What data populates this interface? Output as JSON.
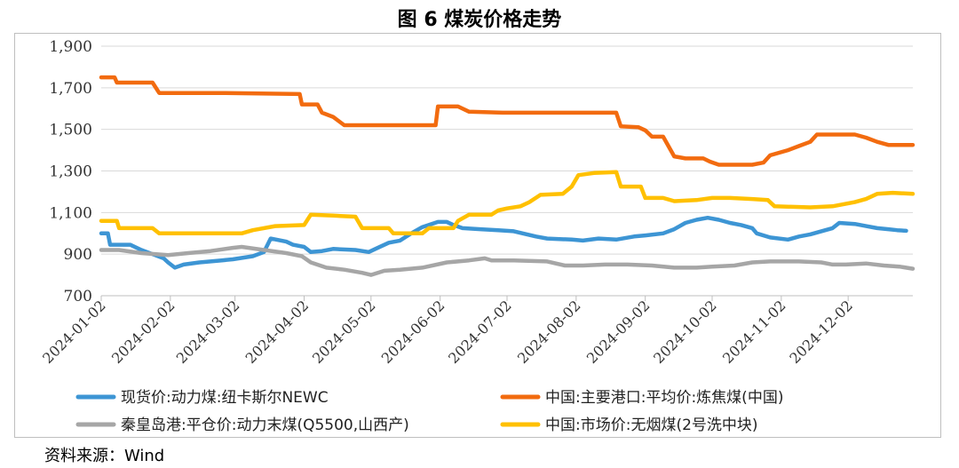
{
  "figure_title": "图 6    煤炭价格走势",
  "source": "资料来源：Wind",
  "colors": {
    "newc": "#3d95d4",
    "coking": "#f26b0f",
    "qinhuangdao": "#a6a6a6",
    "anthracite": "#ffc000",
    "grid": "#d9d9d9",
    "axis": "#bfbfbf"
  },
  "chart_data": {
    "type": "line",
    "title": "",
    "xlabel": "",
    "ylabel": "",
    "ylim": [
      700,
      1900
    ],
    "y_ticks": [
      700,
      900,
      1100,
      1300,
      1500,
      1700,
      1900
    ],
    "y_tick_labels": [
      "700",
      "900",
      "1,100",
      "1,300",
      "1,500",
      "1,700",
      "1,900"
    ],
    "x_range": [
      "2024-01-02",
      "2024-12-31"
    ],
    "x_tick_labels": [
      "2024-01-02",
      "2024-02-02",
      "2024-03-02",
      "2024-04-02",
      "2024-05-02",
      "2024-06-02",
      "2024-07-02",
      "2024-08-02",
      "2024-09-02",
      "2024-10-02",
      "2024-11-02",
      "2024-12-02"
    ],
    "grid": "horizontal",
    "legend_position": "bottom",
    "series": [
      {
        "name": "现货价:动力煤:纽卡斯尔NEWC",
        "color_key": "newc",
        "points": [
          [
            "2024-01-02",
            1000
          ],
          [
            "2024-01-05",
            1000
          ],
          [
            "2024-01-06",
            945
          ],
          [
            "2024-01-15",
            945
          ],
          [
            "2024-01-20",
            920
          ],
          [
            "2024-01-25",
            900
          ],
          [
            "2024-01-30",
            880
          ],
          [
            "2024-02-01",
            860
          ],
          [
            "2024-02-04",
            835
          ],
          [
            "2024-02-08",
            850
          ],
          [
            "2024-02-15",
            860
          ],
          [
            "2024-02-25",
            870
          ],
          [
            "2024-03-01",
            875
          ],
          [
            "2024-03-10",
            890
          ],
          [
            "2024-03-15",
            910
          ],
          [
            "2024-03-18",
            975
          ],
          [
            "2024-03-25",
            960
          ],
          [
            "2024-03-28",
            945
          ],
          [
            "2024-04-02",
            935
          ],
          [
            "2024-04-05",
            910
          ],
          [
            "2024-04-10",
            915
          ],
          [
            "2024-04-15",
            925
          ],
          [
            "2024-04-25",
            920
          ],
          [
            "2024-05-01",
            910
          ],
          [
            "2024-05-05",
            930
          ],
          [
            "2024-05-10",
            955
          ],
          [
            "2024-05-15",
            965
          ],
          [
            "2024-05-20",
            1000
          ],
          [
            "2024-05-25",
            1030
          ],
          [
            "2024-06-01",
            1055
          ],
          [
            "2024-06-05",
            1055
          ],
          [
            "2024-06-08",
            1040
          ],
          [
            "2024-06-12",
            1025
          ],
          [
            "2024-06-20",
            1020
          ],
          [
            "2024-06-28",
            1015
          ],
          [
            "2024-07-05",
            1010
          ],
          [
            "2024-07-15",
            985
          ],
          [
            "2024-07-20",
            975
          ],
          [
            "2024-07-31",
            970
          ],
          [
            "2024-08-05",
            965
          ],
          [
            "2024-08-12",
            975
          ],
          [
            "2024-08-20",
            970
          ],
          [
            "2024-08-28",
            985
          ],
          [
            "2024-09-02",
            990
          ],
          [
            "2024-09-10",
            1000
          ],
          [
            "2024-09-15",
            1020
          ],
          [
            "2024-09-20",
            1050
          ],
          [
            "2024-09-25",
            1065
          ],
          [
            "2024-09-30",
            1075
          ],
          [
            "2024-10-05",
            1065
          ],
          [
            "2024-10-10",
            1050
          ],
          [
            "2024-10-15",
            1040
          ],
          [
            "2024-10-20",
            1025
          ],
          [
            "2024-10-22",
            1000
          ],
          [
            "2024-10-28",
            980
          ],
          [
            "2024-11-05",
            970
          ],
          [
            "2024-11-10",
            985
          ],
          [
            "2024-11-15",
            995
          ],
          [
            "2024-11-20",
            1010
          ],
          [
            "2024-11-25",
            1025
          ],
          [
            "2024-11-28",
            1050
          ],
          [
            "2024-12-05",
            1045
          ],
          [
            "2024-12-10",
            1035
          ],
          [
            "2024-12-15",
            1025
          ],
          [
            "2024-12-20",
            1020
          ],
          [
            "2024-12-24",
            1015
          ],
          [
            "2024-12-28",
            1012
          ]
        ]
      },
      {
        "name": "中国:主要港口:平均价:炼焦煤(中国)",
        "color_key": "coking",
        "points": [
          [
            "2024-01-02",
            1750
          ],
          [
            "2024-01-08",
            1750
          ],
          [
            "2024-01-09",
            1725
          ],
          [
            "2024-01-25",
            1725
          ],
          [
            "2024-01-28",
            1675
          ],
          [
            "2024-02-25",
            1675
          ],
          [
            "2024-03-31",
            1670
          ],
          [
            "2024-04-01",
            1620
          ],
          [
            "2024-04-08",
            1620
          ],
          [
            "2024-04-10",
            1580
          ],
          [
            "2024-04-15",
            1560
          ],
          [
            "2024-04-20",
            1520
          ],
          [
            "2024-05-31",
            1520
          ],
          [
            "2024-06-01",
            1610
          ],
          [
            "2024-06-10",
            1610
          ],
          [
            "2024-06-15",
            1585
          ],
          [
            "2024-06-30",
            1580
          ],
          [
            "2024-07-31",
            1580
          ],
          [
            "2024-08-20",
            1580
          ],
          [
            "2024-08-22",
            1515
          ],
          [
            "2024-08-30",
            1510
          ],
          [
            "2024-09-02",
            1495
          ],
          [
            "2024-09-05",
            1465
          ],
          [
            "2024-09-10",
            1465
          ],
          [
            "2024-09-15",
            1370
          ],
          [
            "2024-09-20",
            1360
          ],
          [
            "2024-09-28",
            1360
          ],
          [
            "2024-10-01",
            1345
          ],
          [
            "2024-10-05",
            1330
          ],
          [
            "2024-10-20",
            1330
          ],
          [
            "2024-10-25",
            1340
          ],
          [
            "2024-10-28",
            1375
          ],
          [
            "2024-11-05",
            1400
          ],
          [
            "2024-11-10",
            1420
          ],
          [
            "2024-11-15",
            1440
          ],
          [
            "2024-11-18",
            1475
          ],
          [
            "2024-11-25",
            1475
          ],
          [
            "2024-12-05",
            1475
          ],
          [
            "2024-12-10",
            1460
          ],
          [
            "2024-12-15",
            1440
          ],
          [
            "2024-12-20",
            1425
          ],
          [
            "2024-12-31",
            1425
          ]
        ]
      },
      {
        "name": "秦皇岛港:平仓价:动力末煤(Q5500,山西产)",
        "color_key": "qinhuangdao",
        "points": [
          [
            "2024-01-02",
            920
          ],
          [
            "2024-01-10",
            920
          ],
          [
            "2024-01-20",
            905
          ],
          [
            "2024-02-01",
            895
          ],
          [
            "2024-02-10",
            905
          ],
          [
            "2024-02-20",
            915
          ],
          [
            "2024-03-01",
            930
          ],
          [
            "2024-03-05",
            935
          ],
          [
            "2024-03-15",
            920
          ],
          [
            "2024-03-25",
            905
          ],
          [
            "2024-04-01",
            890
          ],
          [
            "2024-04-05",
            860
          ],
          [
            "2024-04-12",
            835
          ],
          [
            "2024-04-20",
            825
          ],
          [
            "2024-04-28",
            810
          ],
          [
            "2024-05-02",
            800
          ],
          [
            "2024-05-08",
            820
          ],
          [
            "2024-05-15",
            825
          ],
          [
            "2024-05-25",
            835
          ],
          [
            "2024-06-05",
            860
          ],
          [
            "2024-06-15",
            870
          ],
          [
            "2024-06-22",
            880
          ],
          [
            "2024-06-25",
            870
          ],
          [
            "2024-07-05",
            870
          ],
          [
            "2024-07-20",
            865
          ],
          [
            "2024-07-28",
            845
          ],
          [
            "2024-08-05",
            845
          ],
          [
            "2024-08-15",
            850
          ],
          [
            "2024-08-25",
            850
          ],
          [
            "2024-09-05",
            845
          ],
          [
            "2024-09-15",
            835
          ],
          [
            "2024-09-25",
            835
          ],
          [
            "2024-10-02",
            840
          ],
          [
            "2024-10-12",
            845
          ],
          [
            "2024-10-20",
            860
          ],
          [
            "2024-10-28",
            865
          ],
          [
            "2024-11-10",
            865
          ],
          [
            "2024-11-20",
            860
          ],
          [
            "2024-11-25",
            850
          ],
          [
            "2024-12-01",
            850
          ],
          [
            "2024-12-10",
            855
          ],
          [
            "2024-12-18",
            845
          ],
          [
            "2024-12-25",
            840
          ],
          [
            "2024-12-31",
            830
          ]
        ]
      },
      {
        "name": "中国:市场价:无烟煤(2号洗中块)",
        "color_key": "anthracite",
        "points": [
          [
            "2024-01-02",
            1060
          ],
          [
            "2024-01-09",
            1060
          ],
          [
            "2024-01-10",
            1025
          ],
          [
            "2024-01-25",
            1025
          ],
          [
            "2024-01-28",
            1000
          ],
          [
            "2024-02-25",
            1000
          ],
          [
            "2024-03-05",
            1000
          ],
          [
            "2024-03-10",
            1015
          ],
          [
            "2024-03-20",
            1035
          ],
          [
            "2024-04-02",
            1040
          ],
          [
            "2024-04-05",
            1090
          ],
          [
            "2024-04-15",
            1085
          ],
          [
            "2024-04-25",
            1080
          ],
          [
            "2024-04-28",
            1025
          ],
          [
            "2024-05-10",
            1025
          ],
          [
            "2024-05-12",
            1000
          ],
          [
            "2024-05-25",
            1000
          ],
          [
            "2024-05-28",
            1025
          ],
          [
            "2024-06-08",
            1025
          ],
          [
            "2024-06-10",
            1060
          ],
          [
            "2024-06-15",
            1090
          ],
          [
            "2024-06-25",
            1090
          ],
          [
            "2024-06-28",
            1110
          ],
          [
            "2024-07-02",
            1120
          ],
          [
            "2024-07-08",
            1130
          ],
          [
            "2024-07-12",
            1150
          ],
          [
            "2024-07-17",
            1185
          ],
          [
            "2024-07-27",
            1190
          ],
          [
            "2024-07-31",
            1225
          ],
          [
            "2024-08-03",
            1280
          ],
          [
            "2024-08-10",
            1290
          ],
          [
            "2024-08-20",
            1295
          ],
          [
            "2024-08-22",
            1225
          ],
          [
            "2024-08-31",
            1225
          ],
          [
            "2024-09-02",
            1170
          ],
          [
            "2024-09-10",
            1170
          ],
          [
            "2024-09-15",
            1155
          ],
          [
            "2024-09-25",
            1160
          ],
          [
            "2024-10-02",
            1170
          ],
          [
            "2024-10-10",
            1170
          ],
          [
            "2024-10-20",
            1165
          ],
          [
            "2024-10-27",
            1160
          ],
          [
            "2024-10-30",
            1130
          ],
          [
            "2024-11-15",
            1125
          ],
          [
            "2024-11-25",
            1130
          ],
          [
            "2024-12-05",
            1150
          ],
          [
            "2024-12-10",
            1165
          ],
          [
            "2024-12-15",
            1190
          ],
          [
            "2024-12-22",
            1195
          ],
          [
            "2024-12-31",
            1190
          ]
        ]
      }
    ]
  },
  "legend": [
    {
      "label": "现货价:动力煤:纽卡斯尔NEWC",
      "color_key": "newc"
    },
    {
      "label": "中国:主要港口:平均价:炼焦煤(中国)",
      "color_key": "coking"
    },
    {
      "label": "秦皇岛港:平仓价:动力末煤(Q5500,山西产)",
      "color_key": "qinhuangdao"
    },
    {
      "label": "中国:市场价:无烟煤(2号洗中块)",
      "color_key": "anthracite"
    }
  ]
}
